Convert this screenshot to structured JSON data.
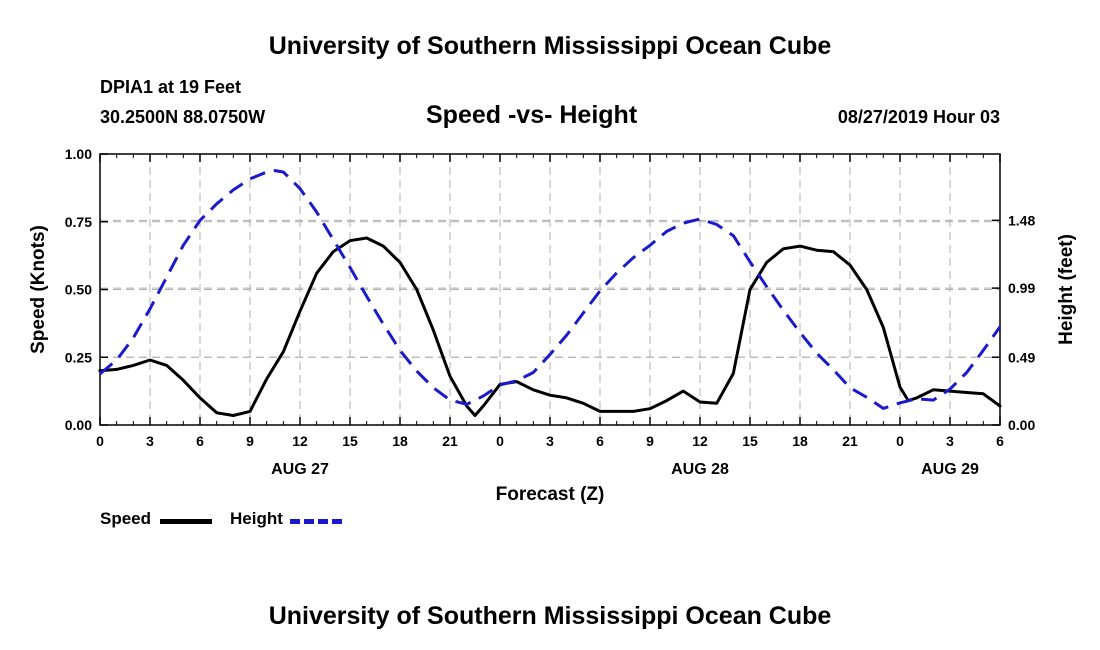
{
  "header": {
    "title": "University of Southern Mississippi Ocean Cube",
    "station": "DPIA1 at 19 Feet",
    "coords": "30.2500N 88.0750W",
    "chart_title": "Speed -vs- Height",
    "datetime": "08/27/2019 Hour 03"
  },
  "footer": {
    "title": "University of Southern Mississippi Ocean Cube"
  },
  "legend": {
    "speed_label": "Speed",
    "height_label": "Height",
    "speed_color": "#000000",
    "height_color": "#1a1acc"
  },
  "chart_data": {
    "type": "line",
    "title": "Speed -vs- Height",
    "xlabel": "Forecast (Z)",
    "ylabel": "Speed (Knots)",
    "ylabel_right": "Height (feet)",
    "xlim": [
      0,
      54
    ],
    "ylim": [
      0,
      1.0
    ],
    "ylim_right": [
      0,
      1.96
    ],
    "grid": true,
    "x_ticks": [
      0,
      3,
      6,
      9,
      12,
      15,
      18,
      21,
      24,
      27,
      30,
      33,
      36,
      39,
      42,
      45,
      48,
      51,
      54
    ],
    "x_tick_labels": [
      "0",
      "3",
      "6",
      "9",
      "12",
      "15",
      "18",
      "21",
      "0",
      "3",
      "6",
      "9",
      "12",
      "15",
      "18",
      "21",
      "0",
      "3",
      "6"
    ],
    "date_labels": [
      {
        "x": 12,
        "label": "AUG 27"
      },
      {
        "x": 36,
        "label": "AUG 28"
      },
      {
        "x": 51,
        "label": "AUG 29"
      }
    ],
    "y_ticks": [
      0,
      0.25,
      0.5,
      0.75,
      1.0
    ],
    "y_tick_labels": [
      "0.00",
      "0.25",
      "0.50",
      "0.75",
      "1.00"
    ],
    "y_ticks_right": [
      0,
      0.49,
      0.99,
      1.48
    ],
    "y_tick_labels_right": [
      "0.00",
      "0.49",
      "0.99",
      "1.48"
    ],
    "series": [
      {
        "name": "Speed",
        "axis": "left",
        "style": "solid",
        "color": "#000000",
        "x": [
          0,
          1,
          2,
          3,
          4,
          5,
          6,
          7,
          8,
          9,
          10,
          11,
          12,
          13,
          14,
          15,
          16,
          17,
          18,
          19,
          20,
          21,
          22,
          22.5,
          23,
          24,
          25,
          26,
          27,
          28,
          29,
          30,
          31,
          32,
          33,
          34,
          35,
          36,
          37,
          38,
          39,
          40,
          41,
          42,
          43,
          44,
          45,
          46,
          47,
          48,
          48.5,
          49,
          50,
          51,
          52,
          53,
          54
        ],
        "y": [
          0.2,
          0.205,
          0.22,
          0.24,
          0.22,
          0.165,
          0.1,
          0.045,
          0.035,
          0.05,
          0.17,
          0.27,
          0.42,
          0.56,
          0.64,
          0.68,
          0.69,
          0.66,
          0.6,
          0.5,
          0.35,
          0.18,
          0.07,
          0.035,
          0.07,
          0.15,
          0.16,
          0.13,
          0.11,
          0.1,
          0.08,
          0.05,
          0.05,
          0.05,
          0.06,
          0.09,
          0.125,
          0.085,
          0.08,
          0.19,
          0.5,
          0.6,
          0.65,
          0.66,
          0.645,
          0.64,
          0.59,
          0.5,
          0.36,
          0.14,
          0.09,
          0.1,
          0.13,
          0.125,
          0.12,
          0.115,
          0.07
        ]
      },
      {
        "name": "Height",
        "axis": "right",
        "style": "dashed",
        "color": "#1a1acc",
        "x": [
          0,
          1,
          2,
          3,
          4,
          5,
          6,
          7,
          8,
          9,
          10,
          10.5,
          11,
          12,
          13,
          14,
          15,
          16,
          17,
          18,
          19,
          20,
          21,
          22,
          23,
          24,
          25,
          26,
          27,
          28,
          29,
          30,
          31,
          32,
          33,
          34,
          35,
          36,
          37,
          38,
          39,
          40,
          41,
          42,
          43,
          44,
          45,
          46,
          47,
          48,
          49,
          50,
          51,
          52,
          53,
          54
        ],
        "y": [
          0.37,
          0.47,
          0.63,
          0.84,
          1.07,
          1.3,
          1.48,
          1.6,
          1.7,
          1.78,
          1.83,
          1.84,
          1.83,
          1.71,
          1.54,
          1.34,
          1.14,
          0.93,
          0.73,
          0.54,
          0.39,
          0.27,
          0.18,
          0.15,
          0.21,
          0.29,
          0.32,
          0.38,
          0.51,
          0.65,
          0.81,
          0.97,
          1.1,
          1.21,
          1.3,
          1.4,
          1.46,
          1.49,
          1.45,
          1.37,
          1.18,
          1.0,
          0.83,
          0.67,
          0.52,
          0.4,
          0.27,
          0.2,
          0.12,
          0.16,
          0.19,
          0.18,
          0.26,
          0.38,
          0.54,
          0.71
        ]
      }
    ]
  }
}
